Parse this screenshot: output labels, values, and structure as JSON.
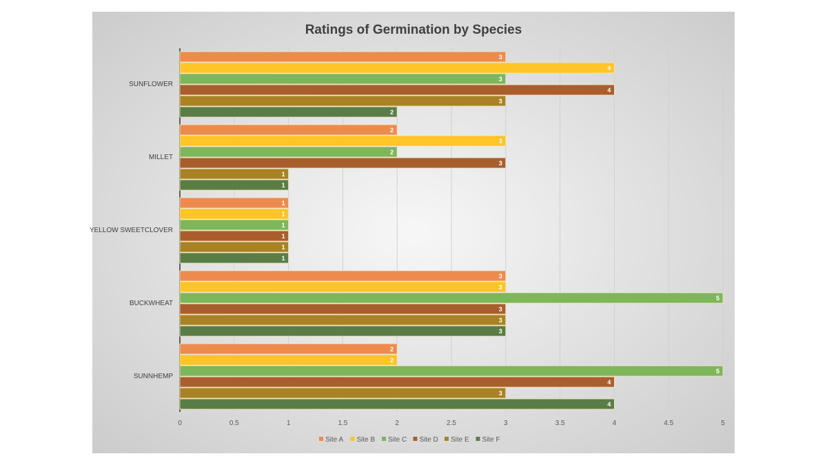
{
  "chart_data": {
    "type": "bar",
    "orientation": "horizontal",
    "title": "Ratings of Germination by Species",
    "categories": [
      "SUNFLOWER",
      "MILLET",
      "YELLOW SWEETCLOVER",
      "BUCKWHEAT",
      "SUNNHEMP"
    ],
    "series": [
      {
        "name": "Site A",
        "color": "#ED8B4E",
        "values": [
          3,
          2,
          1,
          3,
          2
        ]
      },
      {
        "name": "Site B",
        "color": "#FFC425",
        "values": [
          4,
          3,
          1,
          3,
          2
        ]
      },
      {
        "name": "Site C",
        "color": "#7EB65B",
        "values": [
          3,
          2,
          1,
          5,
          5
        ]
      },
      {
        "name": "Site D",
        "color": "#A95E2E",
        "values": [
          4,
          3,
          1,
          3,
          4
        ]
      },
      {
        "name": "Site E",
        "color": "#A88224",
        "values": [
          3,
          1,
          1,
          3,
          3
        ]
      },
      {
        "name": "Site F",
        "color": "#5A7D47",
        "values": [
          2,
          1,
          1,
          3,
          4
        ]
      }
    ],
    "xlim": [
      0,
      5
    ],
    "xticks": [
      "0",
      "0.5",
      "1",
      "1.5",
      "2",
      "2.5",
      "3",
      "3.5",
      "4",
      "4.5",
      "5"
    ],
    "grid": true,
    "data_labels": true,
    "legend": "bottom"
  }
}
